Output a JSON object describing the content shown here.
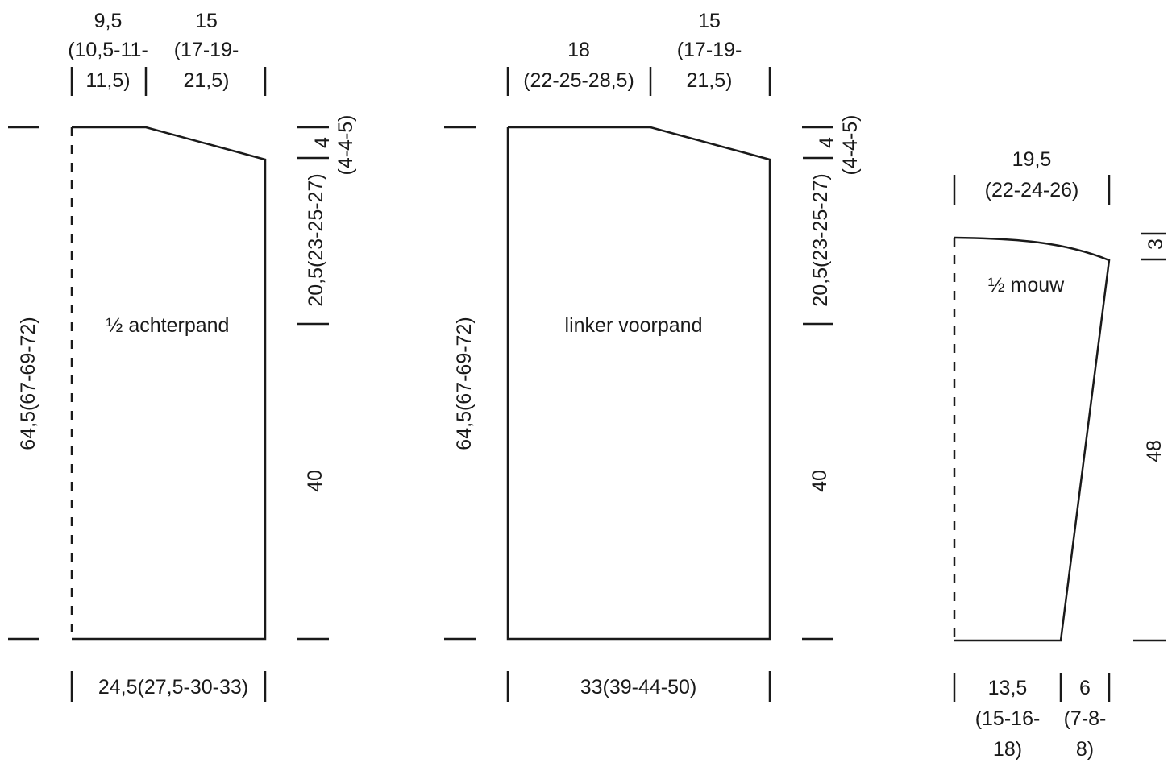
{
  "back": {
    "top_neck_width": [
      "9,5",
      "(10,5-11-",
      "11,5)"
    ],
    "top_shoulder_width": [
      "15",
      "(17-19-",
      "21,5)"
    ],
    "total_height": "64,5(67-69-72)",
    "armhole_height": "20,5(23-25-27)",
    "shoulder_slope": [
      "4",
      "(4-4-5)"
    ],
    "side_height": "40",
    "width": "24,5(27,5-30-33)",
    "piece_label": "½ achterpand"
  },
  "front": {
    "top_neck_width": [
      "18",
      "(22-25-28,5)"
    ],
    "top_shoulder_width": [
      "15",
      "(17-19-",
      "21,5)"
    ],
    "total_height": "64,5(67-69-72)",
    "armhole_height": "20,5(23-25-27)",
    "shoulder_slope": [
      "4",
      "(4-4-5)"
    ],
    "side_height": "40",
    "width": "33(39-44-50)",
    "piece_label": "linker voorpand"
  },
  "sleeve": {
    "top_width": [
      "19,5",
      "(22-24-26)"
    ],
    "cap_height": "3",
    "length": "48",
    "cuff_width": [
      "13,5",
      "(15-16-",
      "18)"
    ],
    "increase_width": [
      "6",
      "(7-8-",
      "8)"
    ],
    "piece_label": "½ mouw"
  }
}
